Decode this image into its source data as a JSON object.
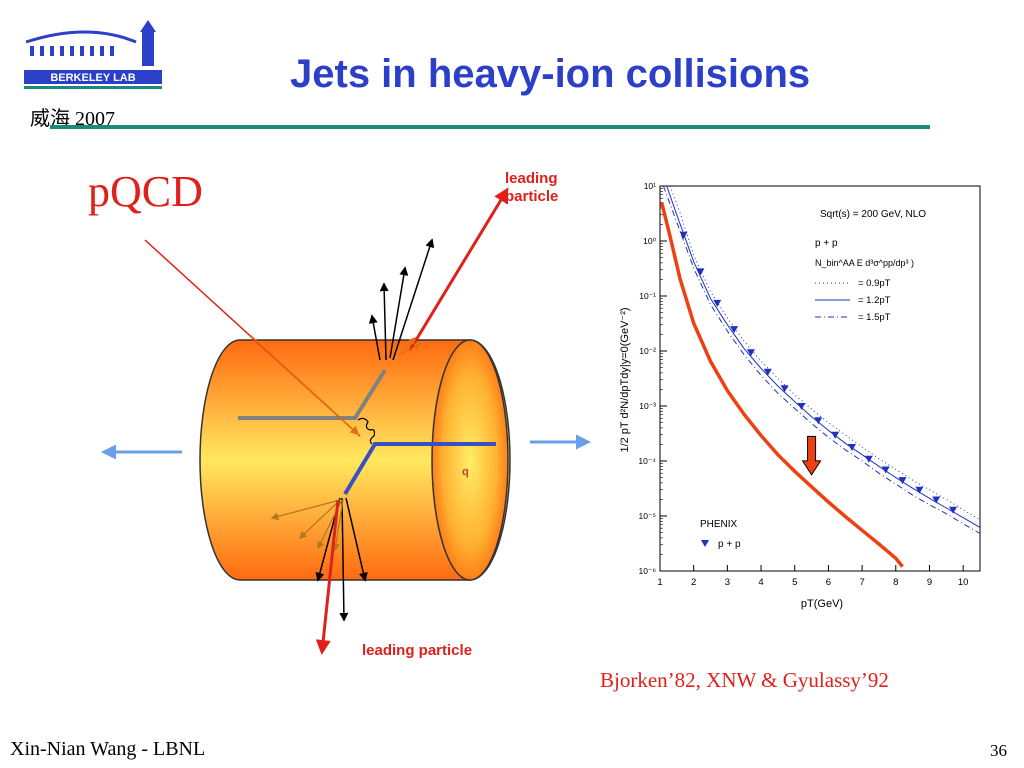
{
  "slide": {
    "title": "Jets in heavy-ion collisions",
    "place_year": "威海 2007",
    "logo_text": "BERKELEY LAB",
    "footer_author": "Xin-Nian Wang - LBNL",
    "page_number": "36",
    "citation": "Bjorken’82, XNW & Gyulassy’92"
  },
  "diagram": {
    "pqcd_label": "pQCD",
    "leading_particle_top_line1": "leading",
    "leading_particle_top_line2": "particle",
    "leading_particle_bottom": "leading particle",
    "quark_label": "q",
    "colors": {
      "cylinder_outer": "#ff6a10",
      "cylinder_inner": "#ffee66",
      "leading_arrow": "#e0201a",
      "parton_line": "#3a4fc0",
      "beam_arrow": "#6a9ee8"
    }
  },
  "chart_data": {
    "type": "line",
    "ylabel": "1/2  pT d²N/dpTdy|y=0(GeV⁻²)",
    "xlabel": "pT(GeV)",
    "xlim": [
      1,
      10.5
    ],
    "ylim": [
      1e-06,
      10
    ],
    "yscale": "log",
    "x_ticks": [
      "1",
      "2",
      "3",
      "4",
      "5",
      "6",
      "7",
      "8",
      "9",
      "10"
    ],
    "y_ticks": [
      "10⁻⁶",
      "10⁻⁵",
      "10⁻⁴",
      "10⁻³",
      "10⁻²",
      "10⁻¹",
      "10⁰",
      "10¹"
    ],
    "legend_header_1": "Sqrt(s) = 200 GeV, NLO",
    "legend_header_2": "p + p",
    "legend_header_3": "N_bin^AA E d³σ^pp/dp³ )",
    "legend_entries": [
      {
        "label": "= 0.9pT",
        "style": "dotted"
      },
      {
        "label": "= 1.2pT",
        "style": "solid"
      },
      {
        "label": "= 1.5pT",
        "style": "dashdot"
      }
    ],
    "data_legend_title": "PHENIX",
    "data_legend_entry": "p + p",
    "series": [
      {
        "style": "dotted",
        "color": "#2030c0",
        "x": [
          1.3,
          1.6,
          2,
          2.5,
          3,
          3.5,
          4,
          4.5,
          5,
          5.5,
          6,
          6.5,
          7,
          7.5,
          8,
          8.5,
          9,
          9.5,
          10,
          10.5
        ],
        "y": [
          10,
          3.2,
          0.55,
          0.12,
          0.04,
          0.015,
          0.0065,
          0.0032,
          0.0016,
          0.00088,
          0.0005,
          0.0003,
          0.00018,
          0.00011,
          7e-05,
          4.5e-05,
          3e-05,
          2e-05,
          1.3e-05,
          8.5e-06
        ]
      },
      {
        "style": "solid",
        "color": "#2030c0",
        "x": [
          1.2,
          1.5,
          2,
          2.5,
          3,
          3.5,
          4,
          4.5,
          5,
          5.5,
          6,
          6.5,
          7,
          7.5,
          8,
          8.5,
          9,
          9.5,
          10,
          10.5
        ],
        "y": [
          10,
          3.0,
          0.42,
          0.09,
          0.03,
          0.011,
          0.0048,
          0.0023,
          0.0012,
          0.00064,
          0.00036,
          0.00021,
          0.00013,
          8e-05,
          5e-05,
          3.2e-05,
          2.1e-05,
          1.4e-05,
          9.3e-06,
          6.2e-06
        ]
      },
      {
        "style": "dashdot",
        "color": "#2030c0",
        "x": [
          1.1,
          1.5,
          2,
          2.5,
          3,
          3.5,
          4,
          4.5,
          5,
          5.5,
          6,
          6.5,
          7,
          7.5,
          8,
          8.5,
          9,
          9.5,
          10,
          10.5
        ],
        "y": [
          10,
          2.2,
          0.32,
          0.07,
          0.023,
          0.0085,
          0.0036,
          0.0017,
          0.0009,
          0.00048,
          0.00027,
          0.00016,
          0.0001,
          6e-05,
          3.8e-05,
          2.4e-05,
          1.6e-05,
          1.1e-05,
          7.2e-06,
          4.8e-06
        ]
      },
      {
        "style": "thick",
        "color": "#ee4010",
        "x": [
          1.05,
          1.3,
          1.6,
          2,
          2.5,
          3,
          3.5,
          4,
          4.5,
          5,
          5.5,
          6,
          6.5,
          7,
          7.5,
          8,
          8.2
        ],
        "y": [
          5,
          1.2,
          0.2,
          0.032,
          0.0065,
          0.0019,
          0.0007,
          0.00029,
          0.00013,
          6.5e-05,
          3.4e-05,
          1.8e-05,
          9.8e-06,
          5.5e-06,
          3.1e-06,
          1.7e-06,
          1.2e-06
        ]
      }
    ],
    "points": {
      "x": [
        1.7,
        2.2,
        2.7,
        3.2,
        3.7,
        4.2,
        4.7,
        5.2,
        5.7,
        6.2,
        6.7,
        7.2,
        7.7,
        8.2,
        8.7,
        9.2,
        9.7
      ],
      "y": [
        1.3,
        0.28,
        0.075,
        0.025,
        0.0095,
        0.0042,
        0.0021,
        0.001,
        0.00055,
        0.0003,
        0.00018,
        0.00011,
        7e-05,
        4.5e-05,
        3e-05,
        2e-05,
        1.3e-05
      ]
    },
    "suppression_arrow": {
      "x": 5.5,
      "y_from": 0.00028,
      "y_to": 5.6e-05
    }
  }
}
